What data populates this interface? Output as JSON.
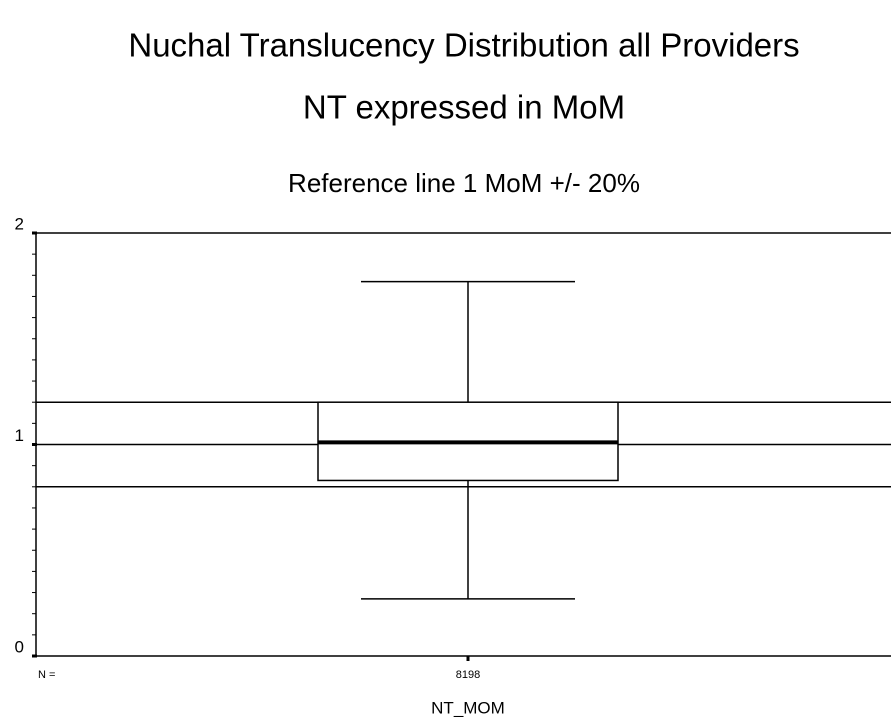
{
  "chart_data": {
    "type": "box",
    "title": "Nuchal Translucency Distribution all Providers",
    "subtitle": "NT expressed in MoM",
    "note": "Reference line 1 MoM +/- 20%",
    "xlabel": "NT_MOM",
    "n_label": "N =",
    "boxes": [
      {
        "whislo": 0.27,
        "q1": 0.83,
        "median": 1.01,
        "q3": 1.2,
        "whishi": 1.77,
        "n": 8198
      }
    ],
    "reference_lines": [
      0.8,
      1,
      1.2
    ],
    "ylim": [
      0,
      2
    ],
    "yticks": [
      0,
      1,
      2
    ],
    "yminor": [
      0.1,
      0.2,
      0.3,
      0.4,
      0.5,
      0.6,
      0.7,
      0.8,
      0.9,
      1.1,
      1.2,
      1.3,
      1.4,
      1.5,
      1.6,
      1.7,
      1.8,
      1.9
    ]
  }
}
